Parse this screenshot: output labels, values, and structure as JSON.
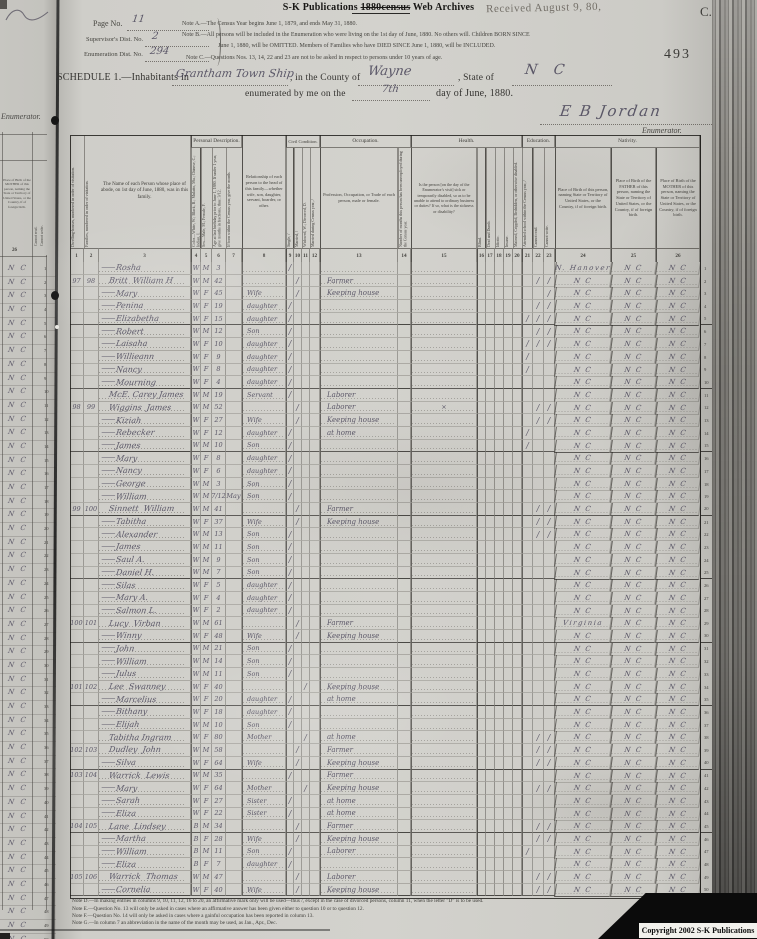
{
  "web_header": {
    "prefix": "S-K Publications ",
    "struck": "1880census",
    "suffix": " Web Archives"
  },
  "stamp": "Received August 9, 80,",
  "corner_letter": "C.",
  "page_stamp": "493",
  "copyright": "Copyright 2002 S-K Publications",
  "form_header": {
    "page_no_label": "Page No.",
    "page_no": "11",
    "sup_label": "Supervisor's Dist. No.",
    "sup_no": "2",
    "enum_label": "Enumeration Dist. No.",
    "enum_no": "294",
    "note_a": "Note A.—The Census Year begins June 1, 1879, and ends May 31, 1880.",
    "note_b1": "Note B.—All persons will be included in the Enumeration who were living on the 1st day of June, 1880.  No others will.  Children BORN SINCE",
    "note_b2": "June 1, 1880, will be OMITTED.  Members of Families who have DIED SINCE June 1, 1880, will be INCLUDED.",
    "note_c": "Note C.—Questions Nos. 13, 14, 22 and 23 are not to be asked in respect to persons under 10 years of age.",
    "schedule_prefix": "SCHEDULE 1.—Inhabitants in",
    "place": "Grantham Town Ship",
    "county_label": ", in the County of",
    "county": "Wayne",
    "state_label": ", State of",
    "state": "N C",
    "enum_line_prefix": "enumerated by me on the",
    "enum_day": "7th",
    "enum_line_suffix": "day of June, 1880.",
    "signature": "E B Jordan",
    "enumerator_label": "Enumerator."
  },
  "table": {
    "groups": {
      "personal": "Personal Description.",
      "civil": "Civil Condition.",
      "occupation": "Occupation.",
      "health": "Health.",
      "education": "Education.",
      "nativity": "Nativity."
    },
    "columns": {
      "numbers": [
        "1",
        "2",
        "3",
        "4",
        "5",
        "6",
        "7",
        "8",
        "9",
        "10",
        "11",
        "12",
        "13",
        "14",
        "15",
        "16",
        "17",
        "18",
        "19",
        "20",
        "21",
        "22",
        "23",
        "24",
        "25",
        "26"
      ],
      "c1": "Dwelling-houses, numbered in order of visitation.",
      "c2": "Families, numbered in order of visitation.",
      "c3": "The Name of each Person whose place of abode, on 1st day of June, 1880, was in this family.",
      "c4": "Color—White, W.; Black, B.; Mulatto, Mu.; Chinese, C.; Indian, I.",
      "c5": "Sex—Male, M.; Female, F.",
      "c6": "Age at last birthday prior to June 1, 1880.  If under 1 year, give months in fractions, thus: 3/12.",
      "c7": "If born within the Census year, give the month.",
      "c8": "Relationship of each person to the head of this family—whether wife, son, daughter, servant, boarder, or other.",
      "c9": "Single, /",
      "c10": "Married, /",
      "c11": "Widowed, W.; Divorced, D.",
      "c12": "Married during Census year, /",
      "c13": "Profession, Occupation, or Trade of each person, male or female.",
      "c14": "Number of months this person has been unemployed during the Census year.",
      "c15": "Is the person [on the day of the Enumerator's visit] sick or temporarily disabled, so as to be unable to attend to ordinary business or duties?  If so, what is the sickness or disability?",
      "c16": "Blind.",
      "c17": "Deaf and Dumb.",
      "c18": "Idiotic.",
      "c19": "Insane.",
      "c20": "Maimed, Crippled, Bedridden, or otherwise disabled.",
      "c21": "Attended school within the Census year, /",
      "c22": "Cannot read.",
      "c23": "Cannot write.",
      "c24": "Place of Birth of this person, naming State or Territory of United States, or the Country, if of foreign birth.",
      "c25": "Place of Birth of the FATHER of this person, naming the State or Territory of United States, or the Country, if of foreign birth.",
      "c26": "Place of Birth of the MOTHER of this person, naming the State or Territory of United States, or the Country, if of foreign birth."
    },
    "rows": [
      {
        "num": "1",
        "dash": "—",
        "n": "Rosha",
        "c": "W",
        "s": "M",
        "a": "3",
        "t9": "/",
        "b24": "N. Hanover",
        "b25": "N C",
        "b26": "N C"
      },
      {
        "num": "2",
        "d": "97",
        "f": "98",
        "n": "Britt  William H",
        "c": "W",
        "s": "M",
        "a": "42",
        "t10": "/",
        "o": "Farmer",
        "e22": "/",
        "e23": "/",
        "b24": "N C",
        "b25": "N C",
        "b26": "N C"
      },
      {
        "num": "3",
        "dash": "—",
        "n": "Mary",
        "c": "W",
        "s": "F",
        "a": "45",
        "r": "Wife",
        "t10": "/",
        "o": "Keeping house",
        "e23": "/",
        "b24": "N C",
        "b25": "N C",
        "b26": "N C"
      },
      {
        "num": "4",
        "dash": "—",
        "n": "Penina",
        "c": "W",
        "s": "F",
        "a": "19",
        "r": "daughter",
        "t9": "/",
        "e22": "/",
        "e23": "/",
        "b24": "N C",
        "b25": "N C",
        "b26": "N C"
      },
      {
        "num": "5",
        "dash": "—",
        "n": "Elizabetha",
        "c": "W",
        "s": "F",
        "a": "15",
        "r": "daughter",
        "t9": "/",
        "e21": "/",
        "e22": "/",
        "e23": "/",
        "b24": "N C",
        "b25": "N C",
        "b26": "N C"
      },
      {
        "num": "6",
        "dash": "—",
        "n": "Robert",
        "c": "W",
        "s": "M",
        "a": "12",
        "r": "Son",
        "t9": "/",
        "e22": "/",
        "e23": "/",
        "b24": "N C",
        "b25": "N C",
        "b26": "N C"
      },
      {
        "num": "7",
        "dash": "—",
        "n": "Laisaha",
        "c": "W",
        "s": "F",
        "a": "10",
        "r": "daughter",
        "t9": "/",
        "e21": "/",
        "e22": "/",
        "e23": "/",
        "b24": "N C",
        "b25": "N C",
        "b26": "N C"
      },
      {
        "num": "8",
        "dash": "—",
        "n": "Willieann",
        "c": "W",
        "s": "F",
        "a": "9",
        "r": "daughter",
        "t9": "/",
        "e21": "/",
        "b24": "N C",
        "b25": "N C",
        "b26": "N C"
      },
      {
        "num": "9",
        "dash": "—",
        "n": "Nancy",
        "c": "W",
        "s": "F",
        "a": "8",
        "r": "daughter",
        "t9": "/",
        "e21": "/",
        "b24": "N C",
        "b25": "N C",
        "b26": "N C"
      },
      {
        "num": "10",
        "dash": "—",
        "n": "Mourning",
        "c": "W",
        "s": "F",
        "a": "4",
        "r": "daughter",
        "t9": "/",
        "b24": "N C",
        "b25": "N C",
        "b26": "N C"
      },
      {
        "num": "11",
        "n": "McE. Carey James",
        "c": "W",
        "s": "M",
        "a": "19",
        "r": "Servant",
        "t9": "/",
        "o": "Laborer",
        "b24": "N C",
        "b25": "N C",
        "b26": "N C"
      },
      {
        "num": "12",
        "d": "98",
        "f": "99",
        "n": "Wiggins  James",
        "c": "W",
        "s": "M",
        "a": "52",
        "t10": "/",
        "o": "Laborer",
        "h": "×",
        "e22": "/",
        "e23": "/",
        "b24": "N C",
        "b25": "N C",
        "b26": "N C"
      },
      {
        "num": "13",
        "dash": "—",
        "n": "Kiziah",
        "c": "W",
        "s": "F",
        "a": "27",
        "r": "Wife",
        "t10": "/",
        "o": "Keeping house",
        "e22": "/",
        "e23": "/",
        "b24": "N C",
        "b25": "N C",
        "b26": "N C"
      },
      {
        "num": "14",
        "dash": "—",
        "n": "Rebecker",
        "c": "W",
        "s": "F",
        "a": "12",
        "r": "daughter",
        "t9": "/",
        "o": "at home",
        "e21": "/",
        "b24": "N C",
        "b25": "N C",
        "b26": "N C"
      },
      {
        "num": "15",
        "dash": "—",
        "n": "James",
        "c": "W",
        "s": "M",
        "a": "10",
        "r": "Son",
        "t9": "/",
        "e21": "/",
        "b24": "N C",
        "b25": "N C",
        "b26": "N C"
      },
      {
        "num": "16",
        "dash": "—",
        "n": "Mary",
        "c": "W",
        "s": "F",
        "a": "8",
        "r": "daughter",
        "t9": "/",
        "b24": "N C",
        "b25": "N C",
        "b26": "N C"
      },
      {
        "num": "17",
        "dash": "—",
        "n": "Nancy",
        "c": "W",
        "s": "F",
        "a": "6",
        "r": "daughter",
        "t9": "/",
        "b24": "N C",
        "b25": "N C",
        "b26": "N C"
      },
      {
        "num": "18",
        "dash": "—",
        "n": "George",
        "c": "W",
        "s": "M",
        "a": "3",
        "r": "Son",
        "t9": "/",
        "b24": "N C",
        "b25": "N C",
        "b26": "N C"
      },
      {
        "num": "19",
        "dash": "—",
        "n": "William",
        "c": "W",
        "s": "M",
        "a": "7/12",
        "mo": "May",
        "r": "Son",
        "t9": "/",
        "b24": "N C",
        "b25": "N C",
        "b26": "N C"
      },
      {
        "num": "20",
        "d": "99",
        "f": "100",
        "n": "Sinnett  William",
        "c": "W",
        "s": "M",
        "a": "41",
        "t10": "/",
        "o": "Farmer",
        "e22": "/",
        "e23": "/",
        "b24": "N C",
        "b25": "N C",
        "b26": "N C"
      },
      {
        "num": "21",
        "dash": "—",
        "n": "Tabitha",
        "c": "W",
        "s": "F",
        "a": "37",
        "r": "Wife",
        "t10": "/",
        "o": "Keeping house",
        "e22": "/",
        "e23": "/",
        "b24": "N C",
        "b25": "N C",
        "b26": "N C"
      },
      {
        "num": "22",
        "dash": "—",
        "n": "Alexander",
        "c": "W",
        "s": "M",
        "a": "13",
        "r": "Son",
        "t9": "/",
        "e22": "/",
        "e23": "/",
        "b24": "N C",
        "b25": "N C",
        "b26": "N C"
      },
      {
        "num": "23",
        "dash": "—",
        "n": "James",
        "c": "W",
        "s": "M",
        "a": "11",
        "r": "Son",
        "t9": "/",
        "b24": "N C",
        "b25": "N C",
        "b26": "N C"
      },
      {
        "num": "24",
        "dash": "—",
        "n": "Saul A.",
        "c": "W",
        "s": "M",
        "a": "9",
        "r": "Son",
        "t9": "/",
        "b24": "N C",
        "b25": "N C",
        "b26": "N C"
      },
      {
        "num": "25",
        "dash": "—",
        "n": "Daniel H.",
        "c": "W",
        "s": "M",
        "a": "7",
        "r": "Son",
        "t9": "/",
        "b24": "N C",
        "b25": "N C",
        "b26": "N C"
      },
      {
        "num": "26",
        "dash": "—",
        "n": "Silas",
        "c": "W",
        "s": "F",
        "a": "5",
        "r": "daughter",
        "t9": "/",
        "b24": "N C",
        "b25": "N C",
        "b26": "N C"
      },
      {
        "num": "27",
        "dash": "—",
        "n": "Mary A.",
        "c": "W",
        "s": "F",
        "a": "4",
        "r": "daughter",
        "t9": "/",
        "b24": "N C",
        "b25": "N C",
        "b26": "N C"
      },
      {
        "num": "28",
        "dash": "—",
        "n": "Salmon L.",
        "c": "W",
        "s": "F",
        "a": "2",
        "r": "daughter",
        "t9": "/",
        "b24": "N C",
        "b25": "N C",
        "b26": "N C"
      },
      {
        "num": "29",
        "d": "100",
        "f": "101",
        "n": "Lucy  Virban",
        "c": "W",
        "s": "M",
        "a": "61",
        "t10": "/",
        "o": "Farmer",
        "b24": "Virginia",
        "b25": "N C",
        "b26": "N C"
      },
      {
        "num": "30",
        "dash": "—",
        "n": "Winny",
        "c": "W",
        "s": "F",
        "a": "48",
        "r": "Wife",
        "t10": "/",
        "o": "Keeping house",
        "b24": "N C",
        "b25": "N C",
        "b26": "N C"
      },
      {
        "num": "31",
        "dash": "—",
        "n": "John",
        "c": "W",
        "s": "M",
        "a": "21",
        "r": "Son",
        "t9": "/",
        "b24": "N C",
        "b25": "N C",
        "b26": "N C"
      },
      {
        "num": "32",
        "dash": "—",
        "n": "William",
        "c": "W",
        "s": "M",
        "a": "14",
        "r": "Son",
        "t9": "/",
        "b24": "N C",
        "b25": "N C",
        "b26": "N C"
      },
      {
        "num": "33",
        "dash": "—",
        "n": "Julus",
        "c": "W",
        "s": "M",
        "a": "11",
        "r": "Son",
        "t9": "/",
        "b24": "N C",
        "b25": "N C",
        "b26": "N C"
      },
      {
        "num": "34",
        "d": "101",
        "f": "102",
        "n": "Lee  Swanney",
        "c": "W",
        "s": "F",
        "a": "40",
        "t11": "/",
        "o": "Keeping house",
        "b24": "N C",
        "b25": "N C",
        "b26": "N C"
      },
      {
        "num": "35",
        "dash": "—",
        "n": "Marcelius",
        "c": "W",
        "s": "F",
        "a": "20",
        "r": "daughter",
        "t9": "/",
        "o": "at home",
        "b24": "N C",
        "b25": "N C",
        "b26": "N C"
      },
      {
        "num": "36",
        "dash": "—",
        "n": "Bithany",
        "c": "W",
        "s": "F",
        "a": "18",
        "r": "daughter",
        "t9": "/",
        "b24": "N C",
        "b25": "N C",
        "b26": "N C"
      },
      {
        "num": "37",
        "dash": "—",
        "n": "Elijah",
        "c": "W",
        "s": "M",
        "a": "10",
        "r": "Son",
        "t9": "/",
        "b24": "N C",
        "b25": "N C",
        "b26": "N C"
      },
      {
        "num": "38",
        "n": "Tabitha Ingram",
        "c": "W",
        "s": "F",
        "a": "80",
        "r": "Mother",
        "t11": "/",
        "o": "at home",
        "e22": "/",
        "e23": "/",
        "b24": "N C",
        "b25": "N C",
        "b26": "N C"
      },
      {
        "num": "39",
        "d": "102",
        "f": "103",
        "n": "Dudley  John",
        "c": "W",
        "s": "M",
        "a": "58",
        "t10": "/",
        "o": "Farmer",
        "e22": "/",
        "e23": "/",
        "b24": "N C",
        "b25": "N C",
        "b26": "N C"
      },
      {
        "num": "40",
        "dash": "—",
        "n": "Silva",
        "c": "W",
        "s": "F",
        "a": "64",
        "r": "Wife",
        "t10": "/",
        "o": "Keeping house",
        "e22": "/",
        "e23": "/",
        "b24": "N C",
        "b25": "N C",
        "b26": "N C"
      },
      {
        "num": "41",
        "d": "103",
        "f": "104",
        "n": "Warrick  Lewis",
        "c": "W",
        "s": "M",
        "a": "35",
        "t9": "/",
        "o": "Farmer",
        "b24": "N C",
        "b25": "N C",
        "b26": "N C"
      },
      {
        "num": "42",
        "dash": "—",
        "n": "Mary",
        "c": "W",
        "s": "F",
        "a": "64",
        "r": "Mother",
        "t11": "/",
        "o": "Keeping house",
        "e22": "/",
        "e23": "/",
        "b24": "N C",
        "b25": "N C",
        "b26": "N C"
      },
      {
        "num": "43",
        "dash": "—",
        "n": "Sarah",
        "c": "W",
        "s": "F",
        "a": "27",
        "r": "Sister",
        "t9": "/",
        "o": "at home",
        "b24": "N C",
        "b25": "N C",
        "b26": "N C"
      },
      {
        "num": "44",
        "dash": "—",
        "n": "Eliza",
        "c": "W",
        "s": "F",
        "a": "22",
        "r": "Sister",
        "t9": "/",
        "o": "at home",
        "b24": "N C",
        "b25": "N C",
        "b26": "N C"
      },
      {
        "num": "45",
        "d": "104",
        "f": "105",
        "n": "Lane  Lindsey",
        "c": "B",
        "s": "M",
        "a": "34",
        "t10": "/",
        "o": "Farmer",
        "e22": "/",
        "e23": "/",
        "b24": "N C",
        "b25": "N C",
        "b26": "N C"
      },
      {
        "num": "46",
        "dash": "—",
        "n": "Martha",
        "c": "B",
        "s": "F",
        "a": "28",
        "r": "Wife",
        "t10": "/",
        "o": "Keeping house",
        "e22": "/",
        "e23": "/",
        "b24": "N C",
        "b25": "N C",
        "b26": "N C"
      },
      {
        "num": "47",
        "dash": "—",
        "n": "William",
        "c": "B",
        "s": "M",
        "a": "11",
        "r": "Son",
        "t9": "/",
        "o": "Laborer",
        "e21": "/",
        "b24": "N C",
        "b25": "N C",
        "b26": "N C"
      },
      {
        "num": "48",
        "dash": "—",
        "n": "Eliza",
        "c": "B",
        "s": "F",
        "a": "7",
        "r": "daughter",
        "t9": "/",
        "b24": "N C",
        "b25": "N C",
        "b26": "N C"
      },
      {
        "num": "49",
        "d": "105",
        "f": "106",
        "n": "Warrick  Thomas",
        "c": "W",
        "s": "M",
        "a": "47",
        "t10": "/",
        "o": "Laborer",
        "e22": "/",
        "e23": "/",
        "b24": "N C",
        "b25": "N C",
        "b26": "N C"
      },
      {
        "num": "50",
        "dash": "—",
        "n": "Cornelia",
        "c": "W",
        "s": "F",
        "a": "40",
        "r": "Wife",
        "t10": "/",
        "o": "Keeping house",
        "e22": "/",
        "e23": "/",
        "b24": "N C",
        "b25": "N C",
        "b26": "N C"
      }
    ]
  },
  "footnotes": {
    "d": "Note D.—In making entries in columns 9, 10, 11, 12, 16 to 20, an affirmative mark only will be used—thus /, except in the case of divorced persons, column 11, when the letter \"D\" is to be used.",
    "e": "Note E.—Question No. 13 will only be asked in cases where an affirmative answer has been given either to question 10 or to question 12.",
    "f": "Note F.—Question No. 14 will only be asked in cases where a gainful occupation has been reported in column 13.",
    "g": "Note G.—In column 7 an abbreviation in the name of the month may be used, as Jan., Apr., Dec."
  },
  "prev_page": {
    "enumerator_label": "Enumerator.",
    "header_text": "Place of Birth of the MOTHER of this person, naming the State or Territory of United States, or the Country, if of foreign birth.",
    "vlabel1": "Cannot read.",
    "vlabel2": "Cannot write.",
    "col_number": "26",
    "birthplace_value": "N C",
    "rows": 50
  }
}
